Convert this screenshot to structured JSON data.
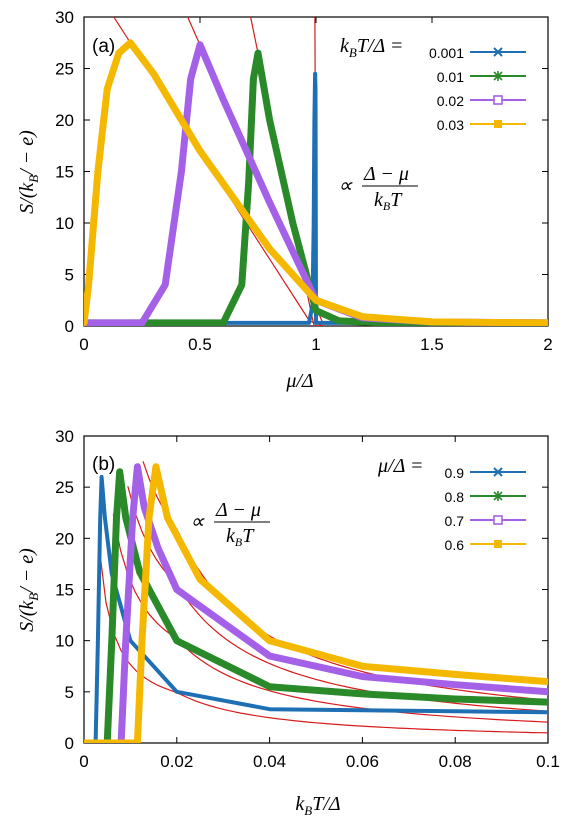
{
  "chart_data": [
    {
      "type": "line",
      "panel": "(a)",
      "xlabel": "μ/Δ",
      "ylabel": "S/(k_B/−e)",
      "xlim": [
        0,
        2
      ],
      "ylim": [
        0,
        30
      ],
      "xticks": [
        "0",
        "0.5",
        "1",
        "1.5",
        "2"
      ],
      "yticks": [
        "0",
        "5",
        "10",
        "15",
        "20",
        "25",
        "30"
      ],
      "legend_title": "k_BT/Δ =",
      "legend_position": "top-right",
      "annotation": "∝ (Δ − μ)/(k_BT)",
      "series": [
        {
          "name": "0.001",
          "color": "#1f6fb4",
          "marker": "x",
          "x": [
            0,
            0.97,
            0.985,
            0.99,
            0.993,
            0.996,
            0.998,
            1.0,
            1.005,
            1.02,
            2
          ],
          "y": [
            0.3,
            0.3,
            2,
            10,
            20,
            24.5,
            23,
            0.3,
            0.3,
            0.3,
            0.3
          ]
        },
        {
          "name": "0.01",
          "color": "#2a8a2a",
          "marker": "*",
          "x": [
            0,
            0.6,
            0.68,
            0.71,
            0.73,
            0.75,
            0.8,
            0.9,
            1.0,
            1.1,
            1.3,
            2
          ],
          "y": [
            0.3,
            0.3,
            4,
            14,
            24,
            26.5,
            20,
            10,
            1.5,
            0.5,
            0.3,
            0.3
          ]
        },
        {
          "name": "0.02",
          "color": "#a560e8",
          "marker": "□",
          "x": [
            0,
            0.25,
            0.35,
            0.42,
            0.46,
            0.5,
            0.6,
            0.8,
            1.0,
            1.2,
            1.5,
            2
          ],
          "y": [
            0.3,
            0.3,
            4,
            15,
            24,
            27.3,
            22,
            12,
            2.5,
            0.8,
            0.4,
            0.3
          ]
        },
        {
          "name": "0.03",
          "color": "#f5b800",
          "marker": "■",
          "x": [
            0,
            0.02,
            0.06,
            0.1,
            0.15,
            0.2,
            0.3,
            0.5,
            0.8,
            1.0,
            1.2,
            1.5,
            2
          ],
          "y": [
            0.3,
            4,
            15,
            23,
            26.5,
            27.5,
            24.5,
            17,
            7.5,
            2.5,
            0.9,
            0.4,
            0.3
          ]
        }
      ]
    },
    {
      "type": "line",
      "panel": "(b)",
      "xlabel": "k_BT/Δ",
      "ylabel": "S/(k_B/−e)",
      "xlim": [
        0,
        0.1
      ],
      "ylim": [
        0,
        30
      ],
      "xticks": [
        "0",
        "0.02",
        "0.04",
        "0.06",
        "0.08",
        "0.1"
      ],
      "yticks": [
        "0",
        "5",
        "10",
        "15",
        "20",
        "25",
        "30"
      ],
      "legend_title": "μ/Δ =",
      "legend_position": "top-right",
      "annotation": "∝ (Δ − μ)/(k_BT)",
      "series": [
        {
          "name": "0.9",
          "color": "#1f6fb4",
          "marker": "x",
          "x": [
            0,
            0.0025,
            0.003,
            0.0035,
            0.0038,
            0.0045,
            0.006,
            0.01,
            0.02,
            0.04,
            0.06,
            0.08,
            0.1
          ],
          "y": [
            0,
            0,
            10,
            22,
            26,
            22,
            16.5,
            10,
            5,
            3.3,
            3.2,
            3.1,
            3.0
          ]
        },
        {
          "name": "0.8",
          "color": "#2a8a2a",
          "marker": "*",
          "x": [
            0,
            0.005,
            0.006,
            0.007,
            0.0077,
            0.009,
            0.012,
            0.02,
            0.04,
            0.06,
            0.08,
            0.1
          ],
          "y": [
            0,
            0,
            10,
            22,
            26.5,
            22,
            16.7,
            10,
            5.5,
            4.8,
            4.3,
            4.0
          ]
        },
        {
          "name": "0.7",
          "color": "#a560e8",
          "marker": "□",
          "x": [
            0,
            0.008,
            0.009,
            0.0105,
            0.0115,
            0.013,
            0.016,
            0.02,
            0.04,
            0.06,
            0.08,
            0.1
          ],
          "y": [
            0,
            0,
            10,
            22,
            27,
            23,
            19,
            15,
            8.5,
            6.5,
            5.7,
            5.0
          ]
        },
        {
          "name": "0.6",
          "color": "#f5b800",
          "marker": "■",
          "x": [
            0,
            0.0115,
            0.0125,
            0.014,
            0.0155,
            0.018,
            0.025,
            0.04,
            0.06,
            0.08,
            0.1
          ],
          "y": [
            0,
            0,
            10,
            22,
            27,
            22,
            16,
            10,
            7.5,
            6.7,
            6.0
          ]
        }
      ]
    }
  ],
  "panels": [
    {
      "label": "(a)",
      "math": {
        "legend_prefix": "k",
        "legend_sub": "B",
        "legend_rest": "T/Δ =",
        "anno_num": "Δ − μ",
        "anno_den_prefix": "k",
        "anno_den_sub": "B",
        "anno_den_rest": "T",
        "xlabel": "μ/Δ",
        "ylabel_pre": "S/(k",
        "ylabel_sub": "B",
        "ylabel_post": "/ − e)"
      }
    },
    {
      "label": "(b)",
      "math": {
        "legend_prefix": "μ/Δ =",
        "legend_sub": "",
        "legend_rest": "",
        "anno_num": "Δ − μ",
        "anno_den_prefix": "k",
        "anno_den_sub": "B",
        "anno_den_rest": "T",
        "xlabel_prefix": "k",
        "xlabel_sub": "B",
        "xlabel_rest": "T/Δ",
        "ylabel_pre": "S/(k",
        "ylabel_sub": "B",
        "ylabel_post": "/ − e)"
      }
    }
  ]
}
